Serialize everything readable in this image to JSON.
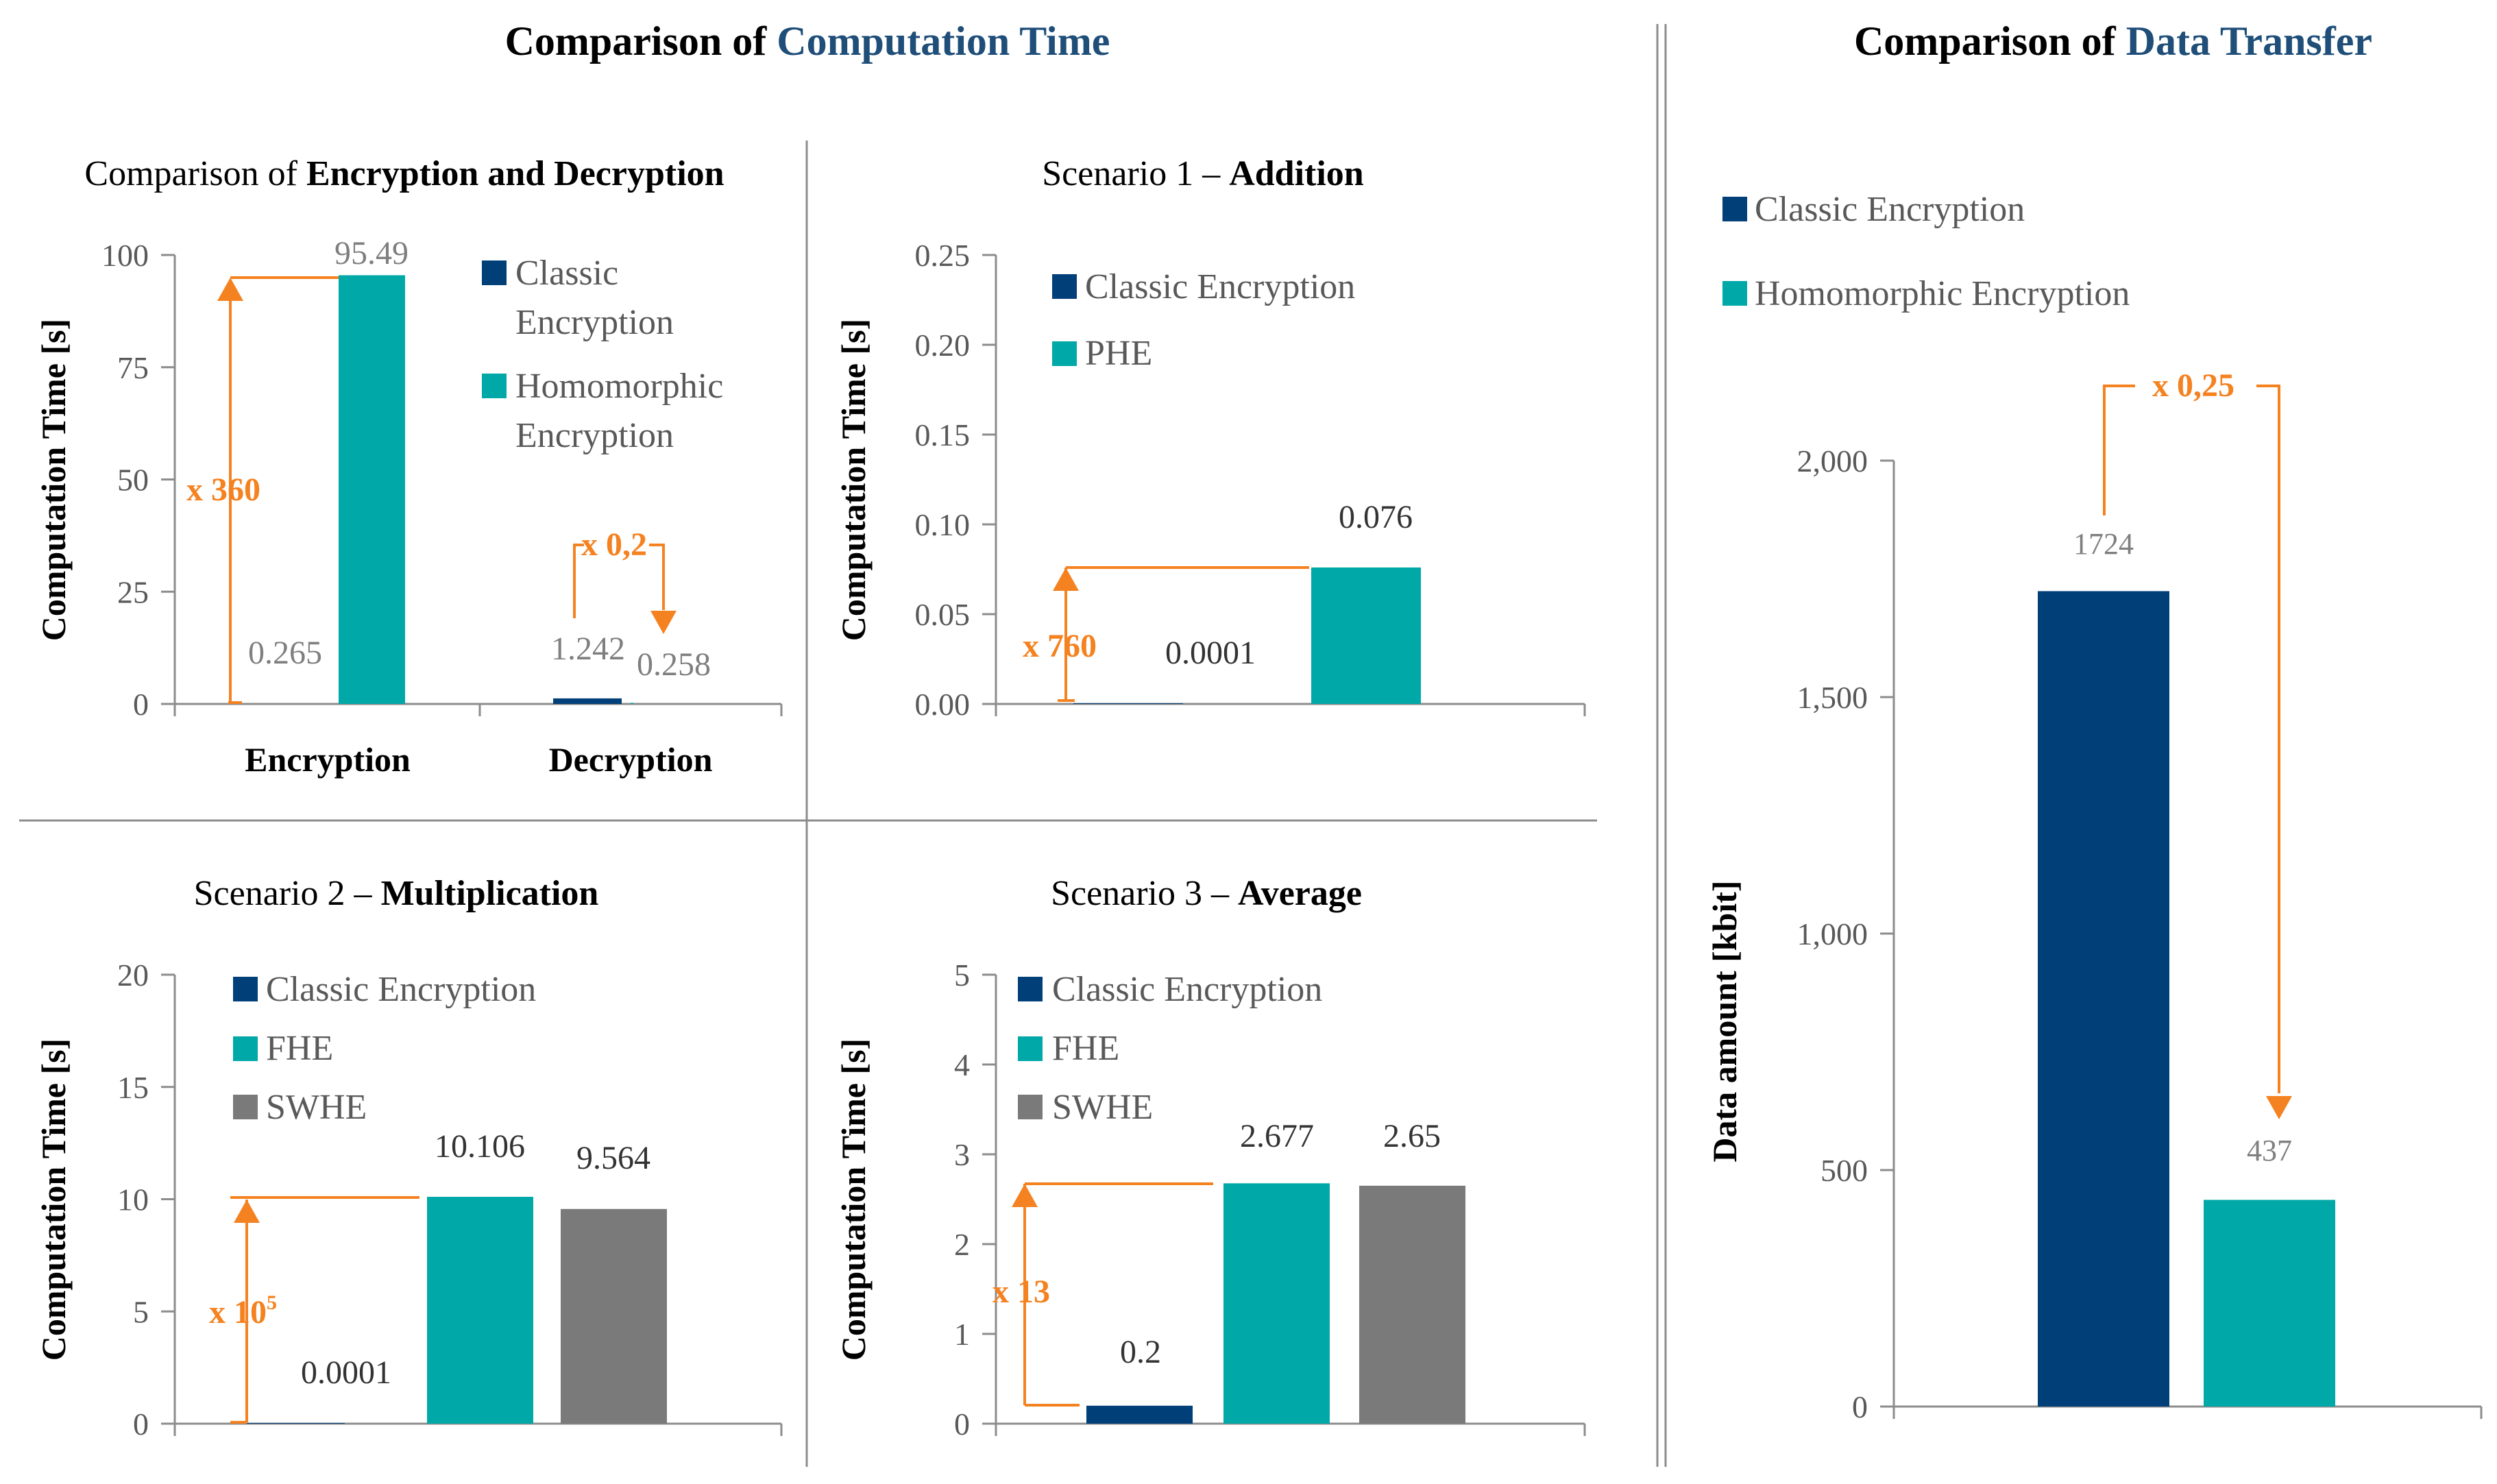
{
  "titles": {
    "computation_prefix": "Comparison of ",
    "computation_highlight": "Computation Time",
    "transfer_prefix": "Comparison of ",
    "transfer_highlight": "Data Transfer"
  },
  "colors": {
    "classic": "#003f78",
    "homomorphic": "#00a8a8",
    "swhe": "#7a7a7a",
    "annotation": "#f58220",
    "title_highlight": "#1f4e79",
    "axis": "#8c8c8c",
    "divider": "#8c8c8c",
    "value_gray": "#7f7f7f",
    "value_dark": "#333333"
  },
  "chart_data": [
    {
      "id": "enc_dec",
      "type": "bar",
      "title_prefix": "Comparison of ",
      "title_bold": "Encryption and Decryption",
      "ylabel": "Computation Time [s]",
      "ylim": [
        0,
        100
      ],
      "yticks": [
        "0",
        "25",
        "50",
        "75",
        "100"
      ],
      "categories": [
        "Encryption",
        "Decryption"
      ],
      "series": [
        {
          "name": "Classic Encryption",
          "values": [
            0.265,
            1.242
          ],
          "labels": [
            "0.265",
            "1.242"
          ]
        },
        {
          "name": "Homomorphic Encryption",
          "values": [
            95.49,
            0.258
          ],
          "labels": [
            "95.49",
            "0.258"
          ]
        }
      ],
      "legend": [
        "Classic Encryption",
        "Homomorphic Encryption"
      ],
      "annotations": [
        "x 360",
        "x 0,2"
      ]
    },
    {
      "id": "addition",
      "type": "bar",
      "title_prefix": "Scenario 1 – ",
      "title_bold": "Addition",
      "ylabel": "Computation Time [s]",
      "ylim": [
        0,
        0.25
      ],
      "yticks": [
        "0.00",
        "0.05",
        "0.10",
        "0.15",
        "0.20",
        "0.25"
      ],
      "series": [
        {
          "name": "Classic Encryption",
          "values": [
            0.0001
          ],
          "labels": [
            "0.0001"
          ]
        },
        {
          "name": "PHE",
          "values": [
            0.076
          ],
          "labels": [
            "0.076"
          ]
        }
      ],
      "legend": [
        "Classic Encryption",
        "PHE"
      ],
      "annotations": [
        "x 760"
      ]
    },
    {
      "id": "multiplication",
      "type": "bar",
      "title_prefix": "Scenario 2 – ",
      "title_bold": "Multiplication",
      "ylabel": "Computation Time [s]",
      "ylim": [
        0,
        20
      ],
      "yticks": [
        "0",
        "5",
        "10",
        "15",
        "20"
      ],
      "series": [
        {
          "name": "Classic Encryption",
          "values": [
            0.0001
          ],
          "labels": [
            "0.0001"
          ]
        },
        {
          "name": "FHE",
          "values": [
            10.106
          ],
          "labels": [
            "10.106"
          ]
        },
        {
          "name": "SWHE",
          "values": [
            9.564
          ],
          "labels": [
            "9.564"
          ]
        }
      ],
      "legend": [
        "Classic Encryption",
        "FHE",
        "SWHE"
      ],
      "annotations": [
        "x 10",
        "5"
      ]
    },
    {
      "id": "average",
      "type": "bar",
      "title_prefix": "Scenario 3 – ",
      "title_bold": "Average",
      "ylabel": "Computation Time [s]",
      "ylim": [
        0,
        5
      ],
      "yticks": [
        "0",
        "1",
        "2",
        "3",
        "4",
        "5"
      ],
      "series": [
        {
          "name": "Classic Encryption",
          "values": [
            0.2
          ],
          "labels": [
            "0.2"
          ]
        },
        {
          "name": "FHE",
          "values": [
            2.677
          ],
          "labels": [
            "2.677"
          ]
        },
        {
          "name": "SWHE",
          "values": [
            2.65
          ],
          "labels": [
            "2.65"
          ]
        }
      ],
      "legend": [
        "Classic Encryption",
        "FHE",
        "SWHE"
      ],
      "annotations": [
        "x 13"
      ]
    },
    {
      "id": "transfer",
      "type": "bar",
      "title_prefix": "",
      "title_bold": "",
      "ylabel": "Data amount [kbit]",
      "ylim": [
        0,
        2000
      ],
      "yticks": [
        "0",
        "500",
        "1,000",
        "1,500",
        "2,000"
      ],
      "series": [
        {
          "name": "Classic Encryption",
          "values": [
            1724
          ],
          "labels": [
            "1724"
          ]
        },
        {
          "name": "Homomorphic Encryption",
          "values": [
            437
          ],
          "labels": [
            "437"
          ]
        }
      ],
      "legend": [
        "Classic Encryption",
        "Homomorphic Encryption"
      ],
      "annotations": [
        "x 0,25"
      ]
    }
  ]
}
